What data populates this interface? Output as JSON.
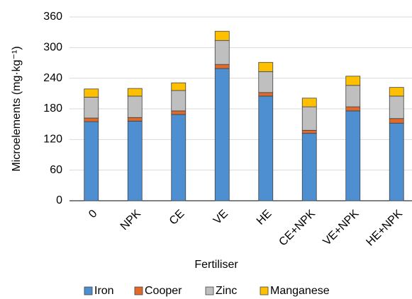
{
  "chart_data": {
    "type": "stacked_bar",
    "x_label": "Fertiliser",
    "y_label": "Microelements (mg·kg⁻¹)",
    "categories": [
      "0",
      "NPK",
      "CE",
      "VE",
      "HE",
      "CE+NPK",
      "VE+NPK",
      "HE+NPK"
    ],
    "series": [
      {
        "name": "Iron",
        "color": "#4e8fd1",
        "values": [
          155,
          156,
          169,
          259,
          205,
          132,
          176,
          152
        ]
      },
      {
        "name": "Cooper",
        "color": "#e06a2a",
        "values": [
          7,
          7,
          7,
          8,
          7,
          6,
          8,
          9
        ]
      },
      {
        "name": "Zinc",
        "color": "#bfbfbf",
        "values": [
          41,
          42,
          40,
          47,
          41,
          46,
          42,
          44
        ]
      },
      {
        "name": "Manganese",
        "color": "#ffc000",
        "values": [
          16,
          15,
          15,
          18,
          18,
          17,
          18,
          17
        ]
      }
    ],
    "ylim": [
      0,
      360
    ],
    "yticks": [
      0,
      60,
      120,
      180,
      240,
      300,
      360
    ],
    "grid": true,
    "legend": "bottom"
  }
}
